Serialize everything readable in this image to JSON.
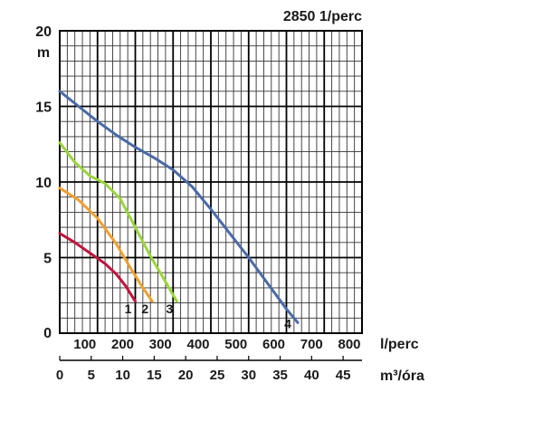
{
  "chart_data": {
    "type": "line",
    "title": "2850 1/perc",
    "ylabel": "m",
    "xlabel_flow": "l/perc",
    "xlabel_volume": "m³/óra",
    "ylim": [
      0,
      20
    ],
    "xlim": [
      0,
      800
    ],
    "grid": true,
    "y_ticks": [
      "0",
      "5",
      "10",
      "15",
      "20"
    ],
    "x_ticks_flow": [
      "100",
      "200",
      "300",
      "400",
      "500",
      "600",
      "700",
      "800"
    ],
    "x_ticks_volume": [
      "0",
      "5",
      "10",
      "15",
      "20",
      "25",
      "30",
      "35",
      "40",
      "45"
    ],
    "series": [
      {
        "name": "1",
        "color": "#c0143c",
        "points": [
          [
            0,
            6.6
          ],
          [
            40,
            6.0
          ],
          [
            80,
            5.3
          ],
          [
            120,
            4.6
          ],
          [
            150,
            3.9
          ],
          [
            175,
            3.1
          ],
          [
            200,
            2.1
          ]
        ]
      },
      {
        "name": "2",
        "color": "#f0a030",
        "points": [
          [
            0,
            9.6
          ],
          [
            50,
            8.8
          ],
          [
            100,
            7.6
          ],
          [
            150,
            5.9
          ],
          [
            190,
            4.2
          ],
          [
            220,
            3.0
          ],
          [
            245,
            2.1
          ]
        ]
      },
      {
        "name": "3",
        "color": "#9ad53a",
        "points": [
          [
            0,
            12.6
          ],
          [
            40,
            11.3
          ],
          [
            80,
            10.4
          ],
          [
            120,
            9.9
          ],
          [
            160,
            8.9
          ],
          [
            200,
            7.0
          ],
          [
            240,
            5.1
          ],
          [
            280,
            3.4
          ],
          [
            310,
            2.1
          ]
        ]
      },
      {
        "name": "4",
        "color": "#4a6aa8",
        "points": [
          [
            0,
            16.0
          ],
          [
            50,
            15.0
          ],
          [
            100,
            14.0
          ],
          [
            150,
            13.1
          ],
          [
            200,
            12.3
          ],
          [
            250,
            11.6
          ],
          [
            300,
            10.8
          ],
          [
            350,
            9.7
          ],
          [
            400,
            8.2
          ],
          [
            450,
            6.6
          ],
          [
            500,
            5.0
          ],
          [
            550,
            3.3
          ],
          [
            600,
            1.6
          ],
          [
            630,
            0.7
          ]
        ]
      }
    ]
  }
}
